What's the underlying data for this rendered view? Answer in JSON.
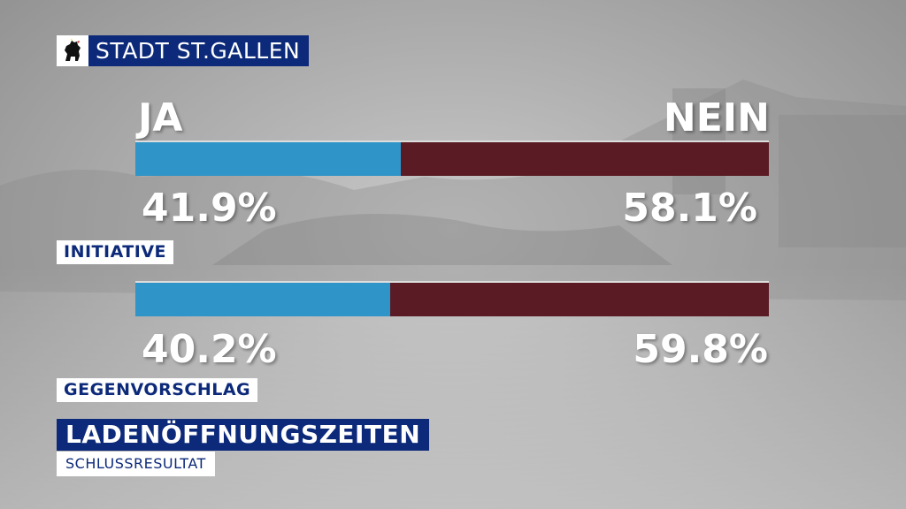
{
  "header": {
    "location": "STADT ST.GALLEN",
    "crest_icon": "bear-crest-icon"
  },
  "colors": {
    "ja": "#2f94c8",
    "nein": "#5a1b24",
    "brand": "#0d2a7a"
  },
  "labels": {
    "ja": "JA",
    "nein": "NEIN"
  },
  "chart_data": {
    "type": "bar",
    "orientation": "horizontal-stacked",
    "categories": [
      "INITIATIVE",
      "GEGENVORSCHLAG"
    ],
    "series": [
      {
        "name": "JA",
        "values": [
          41.9,
          40.2
        ]
      },
      {
        "name": "NEIN",
        "values": [
          58.1,
          59.8
        ]
      }
    ],
    "data_labels": {
      "ja": [
        "41.9%",
        "40.2%"
      ],
      "nein": [
        "58.1%",
        "59.8%"
      ]
    },
    "title": "LADENÖFFNUNGSZEITEN",
    "subtitle": "SCHLUSSRESULTAT",
    "xlim": [
      0,
      100
    ]
  }
}
